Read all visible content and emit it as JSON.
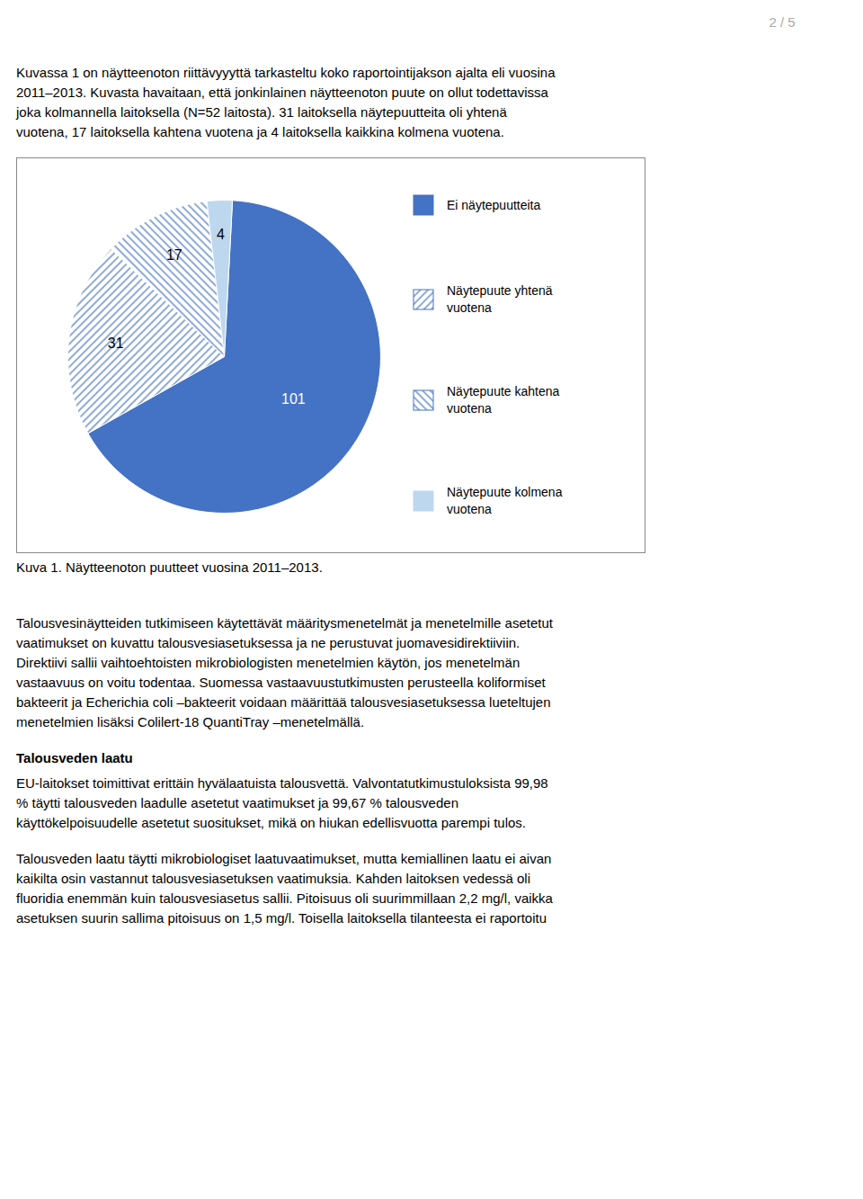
{
  "chart_data": {
    "type": "pie",
    "title": "Kuva 1. Näytteenoton puutteet vuosina 2011–2013.",
    "categories": [
      "Ei näytepuutteita",
      "Näytepuute yhtenä\nvuotena",
      "Näytepuute kahtena\nvuotena",
      "Näytepuute kolmena\nvuotena"
    ],
    "values": [
      101,
      31,
      17,
      4
    ],
    "colors": [
      "#4472C4",
      "#4472C4",
      "#4472C4",
      "#BDD7EE"
    ],
    "data_labels": true,
    "legend": "right",
    "annotations": [
      "2 / 5",
      "Kuvassa 1 on näytteenoton riittävyyyttä tarkasteltu koko raportointijakson ajalta eli vuosina\n2011–2013. Kuvasta havaitaan, että jonkinlainen näytteenoton puute on ollut todettavissa\njoka kolmannella laitoksella (N=52 laitosta). 31 laitoksella näytepuutteita oli yhtenä\nvuotena, 17 laitoksella kahtena vuotena ja 4 laitoksella kaikkina kolmena vuotena.",
      "Talousvesinäytteiden tutkimiseen käytettävät määritysmenetelmät ja menetelmille asetetut\nvaatimukset on kuvattu talousvesiasetuksessa ja ne perustuvat juomavesidirektiiviin.\nDirektiivi sallii vaihtoehtoisten mikrobiologisten menetelmien käytön, jos menetelmän\nvastaavuus on voitu todentaa. Suomessa vastaavuustutkimusten perusteella koliformiset\nbakteerit ja Echerichia coli –bakteerit voidaan määrittää talousvesiasetuksessa lueteltujen\nmenetelmien lisäksi Colilert-18 QuantiTray –menetelmällä.",
      "Talousveden laatu",
      "EU-laitokset toimittivat erittäin hyvälaatuista talousvettä. Valvontatutkimustuloksista 99,98\n% täytti talousveden laadulle asetetut vaatimukset ja 99,67 % talousveden\nkäyttökelpoisuudelle asetetut suositukset, mikä on hiukan edellisvuotta parempi tulos.",
      "Talousveden laatu täytti mikrobiologiset laatuvaatimukset, mutta kemiallinen laatu ei aivan\nkaikilta osin vastannut talousvesiasetuksen vaatimuksia. Kahden laitoksen vedessä oli\nfluoridia enemmän kuin talousvesiasetus sallii. Pitoisuus oli suurimmillaan 2,2 mg/l, vaikka\nasetuksen suurin sallima pitoisuus on 1,5 mg/l. Toisella laitoksella tilanteesta ei raportoitu"
    ]
  }
}
